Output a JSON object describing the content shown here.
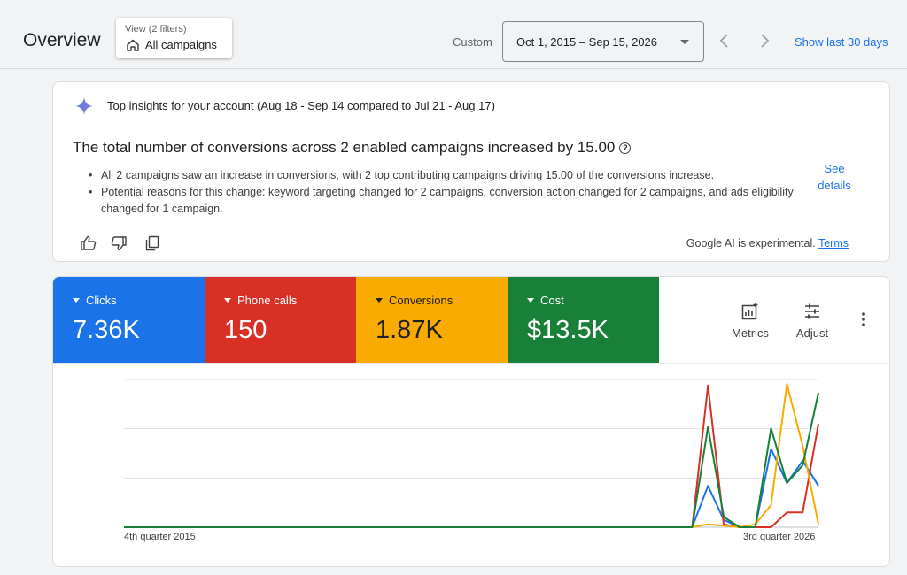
{
  "header": {
    "title": "Overview",
    "view_filters": "View (2 filters)",
    "view_value": "All campaigns",
    "date_label": "Custom",
    "date_range": "Oct 1, 2015 – Sep 15, 2026",
    "show_last": "Show last 30 days"
  },
  "insights": {
    "heading": "Top insights for your account (Aug 18 - Sep 14 compared to Jul 21 - Aug 17)",
    "title": "The total number of conversions across 2 enabled campaigns increased by 15.00",
    "bullets": [
      "All 2 campaigns saw an increase in conversions, with 2 top contributing campaigns driving 15.00 of the conversions increase.",
      "Potential reasons for this change: keyword targeting changed for 2 campaigns, conversion action changed for 2 campaigns, and ads eligibility changed for 1 campaign."
    ],
    "see_details": "See details",
    "ai_note": "Google AI is experimental.",
    "terms": "Terms",
    "icons": [
      "sparkle-icon",
      "thumbs-up-icon",
      "thumbs-down-icon",
      "copy-icon",
      "help-icon"
    ]
  },
  "metrics": [
    {
      "label": "Clicks",
      "value": "7.36K",
      "color": "#1a73e8"
    },
    {
      "label": "Phone calls",
      "value": "150",
      "color": "#d93025"
    },
    {
      "label": "Conversions",
      "value": "1.87K",
      "color": "#f9ab00"
    },
    {
      "label": "Cost",
      "value": "$13.5K",
      "color": "#188038"
    }
  ],
  "tools": {
    "metrics": "Metrics",
    "adjust": "Adjust"
  },
  "chart_data": {
    "type": "line",
    "x_start_label": "4th quarter 2015",
    "x_end_label": "3rd quarter 2026",
    "n_points": 45,
    "gridlines": 3,
    "series": [
      {
        "name": "Clicks",
        "color": "#1a73e8",
        "values": [
          0,
          0,
          0,
          0,
          0,
          0,
          0,
          0,
          0,
          0,
          0,
          0,
          0,
          0,
          0,
          0,
          0,
          0,
          0,
          0,
          0,
          0,
          0,
          0,
          0,
          0,
          0,
          0,
          0,
          0,
          0,
          0,
          0,
          0,
          0,
          0,
          0,
          0.28,
          0.05,
          0,
          0,
          0.53,
          0.3,
          0.45,
          0.28
        ]
      },
      {
        "name": "Phone calls",
        "color": "#d93025",
        "values": [
          0,
          0,
          0,
          0,
          0,
          0,
          0,
          0,
          0,
          0,
          0,
          0,
          0,
          0,
          0,
          0,
          0,
          0,
          0,
          0,
          0,
          0,
          0,
          0,
          0,
          0,
          0,
          0,
          0,
          0,
          0,
          0,
          0,
          0,
          0,
          0,
          0,
          0.96,
          0.02,
          0,
          0,
          0,
          0.1,
          0.1,
          0.7
        ]
      },
      {
        "name": "Conversions",
        "color": "#f9ab00",
        "values": [
          0,
          0,
          0,
          0,
          0,
          0,
          0,
          0,
          0,
          0,
          0,
          0,
          0,
          0,
          0,
          0,
          0,
          0,
          0,
          0,
          0,
          0,
          0,
          0,
          0,
          0,
          0,
          0,
          0,
          0,
          0,
          0,
          0,
          0,
          0,
          0,
          0,
          0.02,
          0.01,
          0,
          0.02,
          0.15,
          0.97,
          0.55,
          0.02
        ]
      },
      {
        "name": "Cost",
        "color": "#188038",
        "values": [
          0,
          0,
          0,
          0,
          0,
          0,
          0,
          0,
          0,
          0,
          0,
          0,
          0,
          0,
          0,
          0,
          0,
          0,
          0,
          0,
          0,
          0,
          0,
          0,
          0,
          0,
          0,
          0,
          0,
          0,
          0,
          0,
          0,
          0,
          0,
          0,
          0,
          0.68,
          0.07,
          0,
          0,
          0.67,
          0.3,
          0.42,
          0.91
        ]
      }
    ]
  }
}
